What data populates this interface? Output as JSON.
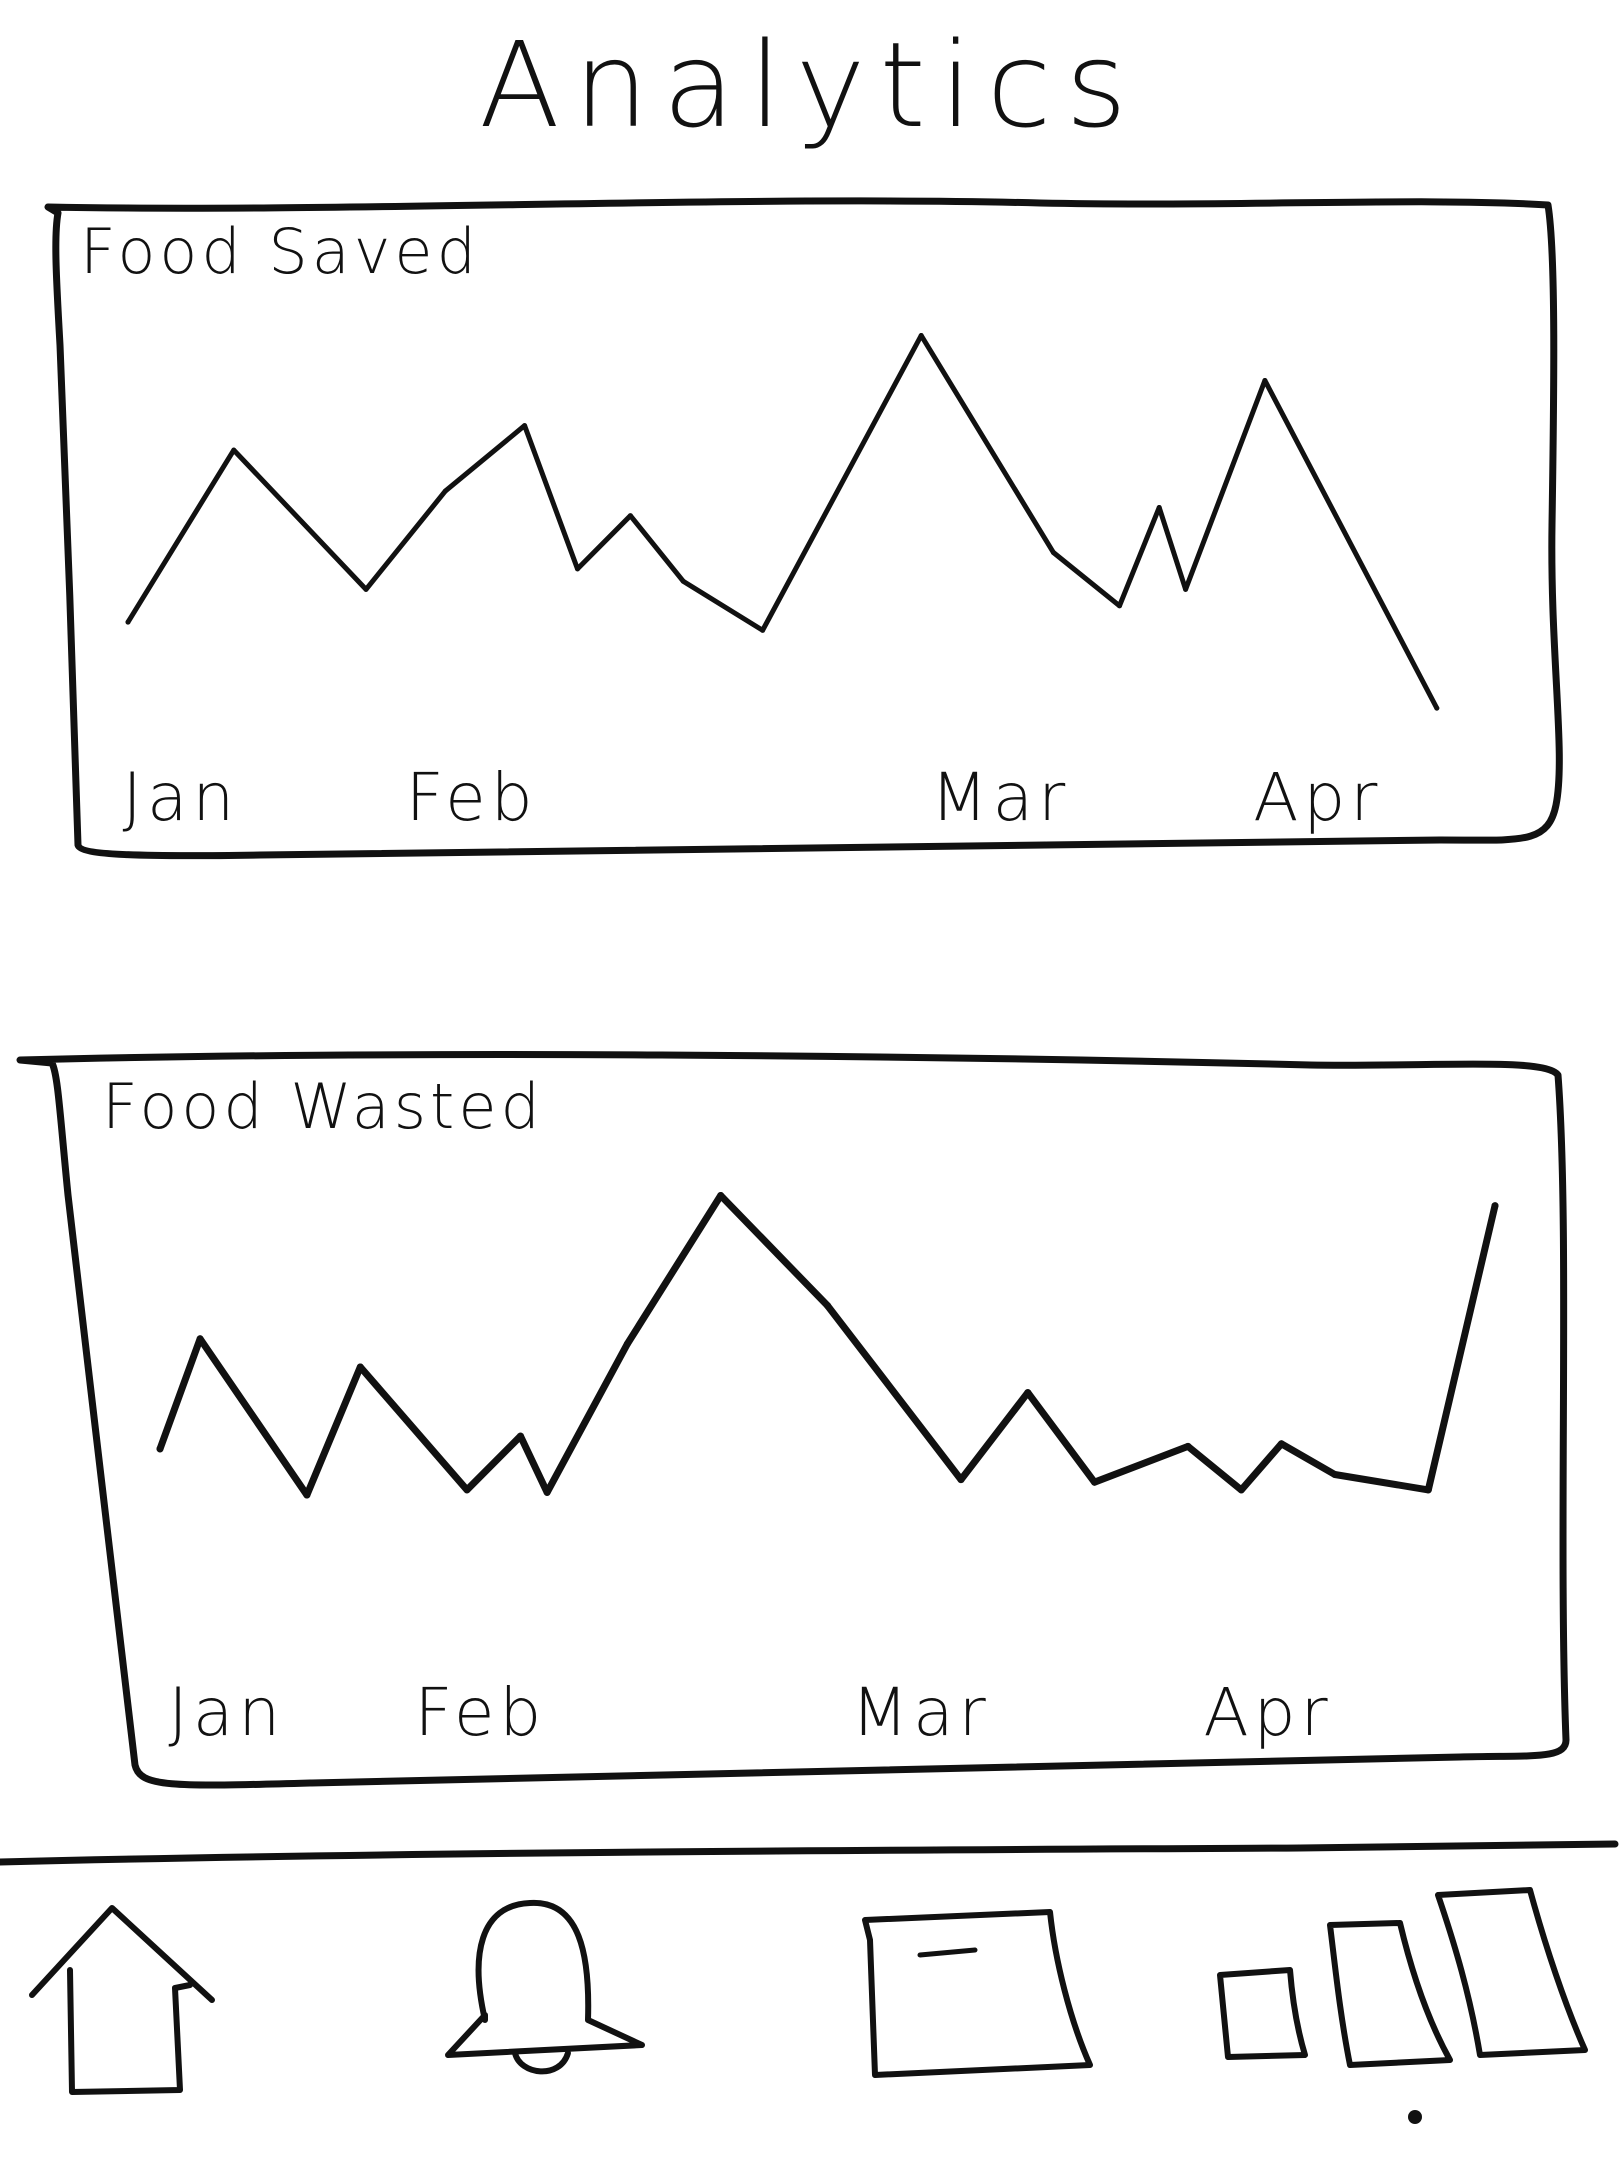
{
  "page": {
    "title": "Analytics"
  },
  "charts": {
    "food_saved": {
      "title": "Food Saved"
    },
    "food_wasted": {
      "title": "Food Wasted"
    }
  },
  "chart_data": [
    {
      "type": "line",
      "title": "Food Saved",
      "xlabel": "",
      "ylabel": "",
      "tick_labels": [
        "Jan",
        "Feb",
        "Mar",
        "Apr"
      ],
      "tick_positions": [
        0.2,
        1.3,
        3.3,
        4.5
      ],
      "x": [
        0.0,
        0.4,
        0.9,
        1.2,
        1.5,
        1.7,
        1.9,
        2.1,
        2.4,
        3.0,
        3.5,
        3.75,
        3.9,
        4.0,
        4.3,
        4.95
      ],
      "values": [
        3.0,
        7.2,
        3.8,
        6.2,
        7.8,
        4.3,
        5.6,
        4.0,
        2.8,
        10.0,
        4.7,
        3.4,
        5.8,
        3.8,
        8.9,
        0.9
      ],
      "ylim": [
        0,
        10.5
      ],
      "xlim": [
        0,
        5
      ],
      "grid": false
    },
    {
      "type": "line",
      "title": "Food Wasted",
      "xlabel": "",
      "ylabel": "",
      "tick_labels": [
        "Jan",
        "Feb",
        "Mar",
        "Apr"
      ],
      "tick_positions": [
        0.25,
        1.2,
        2.85,
        4.15
      ],
      "x": [
        0.0,
        0.15,
        0.55,
        0.75,
        1.15,
        1.35,
        1.45,
        1.75,
        2.1,
        2.5,
        3.0,
        3.25,
        3.5,
        3.85,
        4.05,
        4.2,
        4.4,
        4.75,
        5.0
      ],
      "values": [
        1.8,
        6.1,
        0.0,
        5.0,
        0.2,
        2.3,
        0.1,
        5.9,
        11.7,
        7.4,
        0.6,
        4.0,
        0.5,
        1.9,
        0.2,
        2.0,
        0.8,
        0.2,
        11.3
      ],
      "ylim": [
        0,
        12.5
      ],
      "xlim": [
        0,
        5
      ],
      "grid": false
    }
  ],
  "nav": {
    "items": [
      {
        "icon": "home-icon"
      },
      {
        "icon": "bell-icon"
      },
      {
        "icon": "card-icon"
      },
      {
        "icon": "documents-icon"
      }
    ]
  },
  "colors": {
    "ink": "#111111",
    "background": "#ffffff"
  }
}
